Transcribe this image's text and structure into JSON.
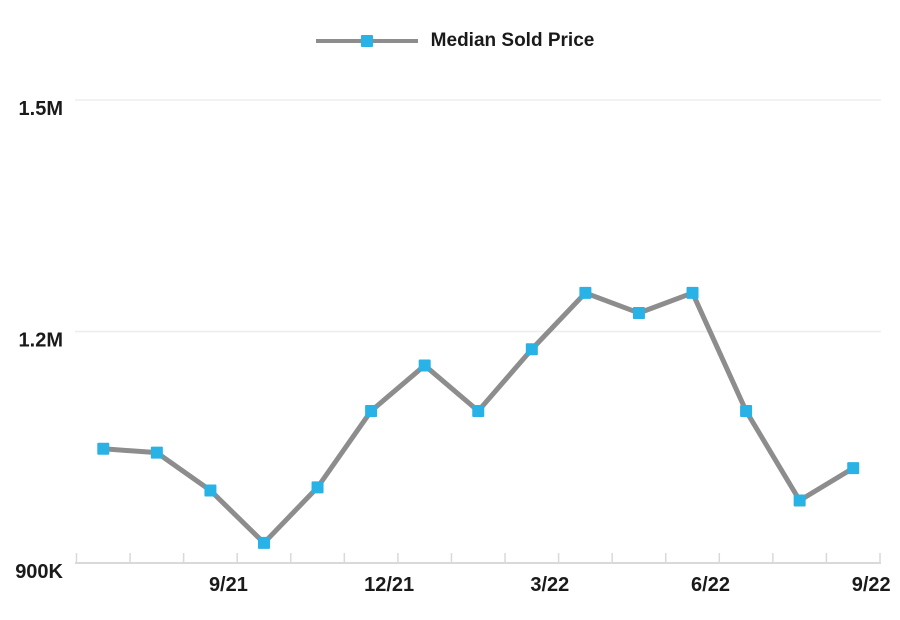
{
  "legend": {
    "label": "Median Sold Price"
  },
  "colors": {
    "series_line": "#8d8d8d",
    "marker": "#29b2e6",
    "grid_line": "#ededed",
    "axis_line": "#d9d9d9",
    "text": "#1a1a1a",
    "background": "#ffffff"
  },
  "chart_data": {
    "type": "line",
    "title": "",
    "xlabel": "",
    "ylabel": "",
    "categories": [
      "7/21",
      "8/21",
      "9/21",
      "10/21",
      "11/21",
      "12/21",
      "1/22",
      "2/22",
      "3/22",
      "4/22",
      "5/22",
      "6/22",
      "7/22",
      "8/22",
      "9/22"
    ],
    "series": [
      {
        "name": "Median Sold Price",
        "values": [
          1048000,
          1043000,
          994000,
          926000,
          998000,
          1097000,
          1156000,
          1097000,
          1177000,
          1250000,
          1224000,
          1250000,
          1097000,
          981000,
          1023000
        ]
      }
    ],
    "x_tick_labels": [
      {
        "index": 2,
        "label": "9/21"
      },
      {
        "index": 5,
        "label": "12/21"
      },
      {
        "index": 8,
        "label": "3/22"
      },
      {
        "index": 11,
        "label": "6/22"
      },
      {
        "index": 14,
        "label": "9/22"
      }
    ],
    "y_ticks": [
      {
        "value": 900000,
        "label": "900K"
      },
      {
        "value": 1200000,
        "label": "1.2M"
      },
      {
        "value": 1500000,
        "label": "1.5M"
      }
    ],
    "ylim": [
      900000,
      1500000
    ],
    "grid": "horizontal-only",
    "legend_position": "top-center",
    "marker_shape": "square"
  }
}
